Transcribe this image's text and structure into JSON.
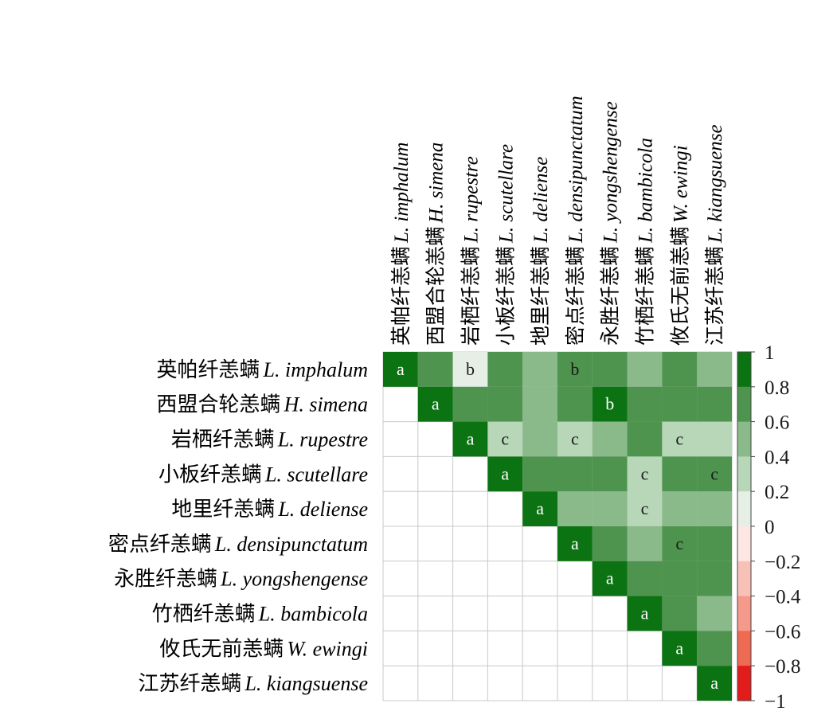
{
  "chart_data": {
    "type": "heatmap",
    "species": [
      {
        "cn": "英帕纤恙螨",
        "latin": "L.  imphalum"
      },
      {
        "cn": "西盟合轮恙螨",
        "latin": "H.  simena"
      },
      {
        "cn": "岩栖纤恙螨",
        "latin": "L.  rupestre"
      },
      {
        "cn": "小板纤恙螨",
        "latin": "L.  scutellare"
      },
      {
        "cn": "地里纤恙螨",
        "latin": "L.  deliense"
      },
      {
        "cn": "密点纤恙螨",
        "latin": "L.  densipunctatum"
      },
      {
        "cn": "永胜纤恙螨",
        "latin": "L.  yongshengense"
      },
      {
        "cn": "竹栖纤恙螨",
        "latin": "L.  bambicola"
      },
      {
        "cn": "攸氏无前恙螨",
        "latin": "W.  ewingi"
      },
      {
        "cn": "江苏纤恙螨",
        "latin": "L.  kiangsuense"
      }
    ],
    "matrix": [
      [
        1,
        0.7,
        0.1,
        0.7,
        0.5,
        0.7,
        0.7,
        0.5,
        0.7,
        0.5
      ],
      [
        null,
        1,
        0.7,
        0.7,
        0.5,
        0.7,
        0.9,
        0.7,
        0.7,
        0.7
      ],
      [
        null,
        null,
        1,
        0.3,
        0.5,
        0.3,
        0.5,
        0.7,
        0.3,
        0.3
      ],
      [
        null,
        null,
        null,
        1,
        0.7,
        0.7,
        0.7,
        0.3,
        0.7,
        0.7
      ],
      [
        null,
        null,
        null,
        null,
        1,
        0.5,
        0.5,
        0.3,
        0.5,
        0.5
      ],
      [
        null,
        null,
        null,
        null,
        null,
        1,
        0.7,
        0.5,
        0.7,
        0.7
      ],
      [
        null,
        null,
        null,
        null,
        null,
        null,
        1,
        0.7,
        0.7,
        0.7
      ],
      [
        null,
        null,
        null,
        null,
        null,
        null,
        null,
        1,
        0.7,
        0.5
      ],
      [
        null,
        null,
        null,
        null,
        null,
        null,
        null,
        null,
        1,
        0.7
      ],
      [
        null,
        null,
        null,
        null,
        null,
        null,
        null,
        null,
        null,
        1
      ]
    ],
    "letters": [
      [
        "a",
        "",
        "b",
        "",
        "",
        "b",
        "",
        "",
        "",
        ""
      ],
      [
        "",
        "a",
        "",
        "",
        "",
        "",
        "b",
        "",
        "",
        ""
      ],
      [
        "",
        "",
        "a",
        "c",
        "",
        "c",
        "",
        "",
        "c",
        ""
      ],
      [
        "",
        "",
        "",
        "a",
        "",
        "",
        "",
        "c",
        "",
        "c"
      ],
      [
        "",
        "",
        "",
        "",
        "a",
        "",
        "",
        "c",
        "",
        ""
      ],
      [
        "",
        "",
        "",
        "",
        "",
        "a",
        "",
        "",
        "c",
        ""
      ],
      [
        "",
        "",
        "",
        "",
        "",
        "",
        "a",
        "",
        "",
        ""
      ],
      [
        "",
        "",
        "",
        "",
        "",
        "",
        "",
        "a",
        "",
        ""
      ],
      [
        "",
        "",
        "",
        "",
        "",
        "",
        "",
        "",
        "a",
        ""
      ],
      [
        "",
        "",
        "",
        "",
        "",
        "",
        "",
        "",
        "",
        "a"
      ]
    ],
    "colorbar": {
      "ticks": [
        "1",
        "0.8",
        "0.6",
        "0.4",
        "0.2",
        "0",
        "−0.2",
        "−0.4",
        "−0.6",
        "−0.8",
        "−1"
      ],
      "range": [
        -1,
        1
      ],
      "positive_colors": [
        "#e6efe6",
        "#b8d6b8",
        "#8ab98a",
        "#4e944e",
        "#0c7313"
      ],
      "negative_colors": [
        "#fde6e3",
        "#f8c1b8",
        "#f5998a",
        "#ef6a52",
        "#e21b1b"
      ]
    },
    "grid_color": "#c8c8c8"
  }
}
